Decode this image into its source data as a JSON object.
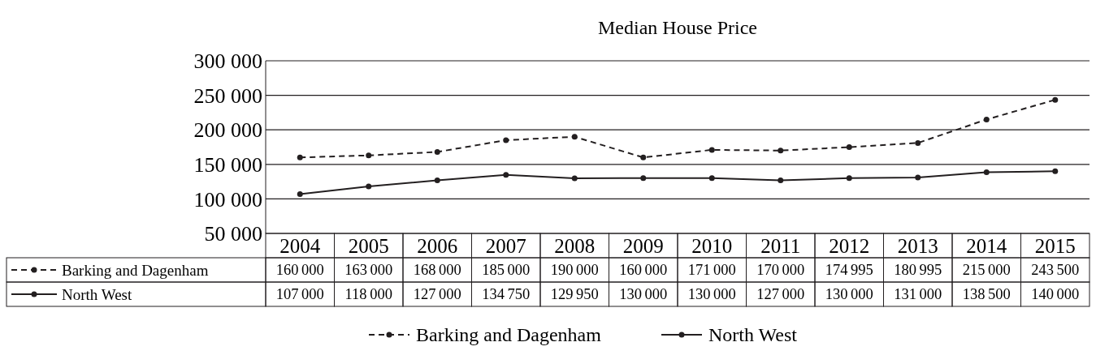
{
  "chart_data": {
    "type": "line",
    "title": "Median House Price",
    "categories": [
      "2004",
      "2005",
      "2006",
      "2007",
      "2008",
      "2009",
      "2010",
      "2011",
      "2012",
      "2013",
      "2014",
      "2015"
    ],
    "series": [
      {
        "name": "Barking and Dagenham",
        "color": "#231f20",
        "line_style": "dashed",
        "values": [
          160000,
          163000,
          168000,
          185000,
          190000,
          160000,
          171000,
          170000,
          174995,
          180995,
          215000,
          243500
        ]
      },
      {
        "name": "North West",
        "color": "#231f20",
        "line_style": "solid",
        "values": [
          107000,
          118000,
          127000,
          134750,
          129950,
          130000,
          130000,
          127000,
          130000,
          131000,
          138500,
          140000
        ]
      }
    ],
    "ylim": [
      50000,
      300000
    ],
    "yticks": [
      {
        "value": 50000,
        "label": "50 000"
      },
      {
        "value": 100000,
        "label": "100 000"
      },
      {
        "value": 150000,
        "label": "150 000"
      },
      {
        "value": 200000,
        "label": "200 000"
      },
      {
        "value": 250000,
        "label": "250 000"
      },
      {
        "value": 300000,
        "label": "300 000"
      }
    ],
    "grid": "y",
    "marker": "circle",
    "data_labels": true,
    "legend": "bottom"
  }
}
